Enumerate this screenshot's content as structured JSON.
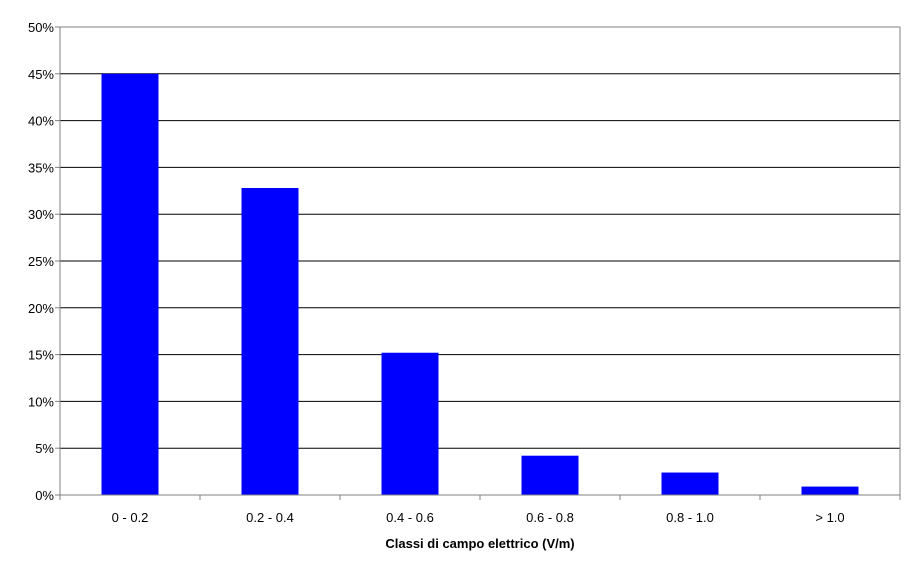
{
  "chart_data": {
    "type": "bar",
    "title": "",
    "xlabel": "Classi di campo elettrico (V/m)",
    "ylabel": "",
    "categories": [
      "0 - 0.2",
      "0.2 - 0.4",
      "0.4 - 0.6",
      "0.6 - 0.8",
      "0.8 - 1.0",
      "> 1.0"
    ],
    "values": [
      45.0,
      32.8,
      15.2,
      4.2,
      2.4,
      0.9
    ],
    "ylim": [
      0,
      50
    ],
    "yticks": [
      0,
      5,
      10,
      15,
      20,
      25,
      30,
      35,
      40,
      45,
      50
    ],
    "ytick_suffix": "%",
    "grid": true,
    "legend": "none",
    "colors": {
      "bar": "#0000FF",
      "grid": "#000000",
      "axis": "#808080"
    }
  }
}
